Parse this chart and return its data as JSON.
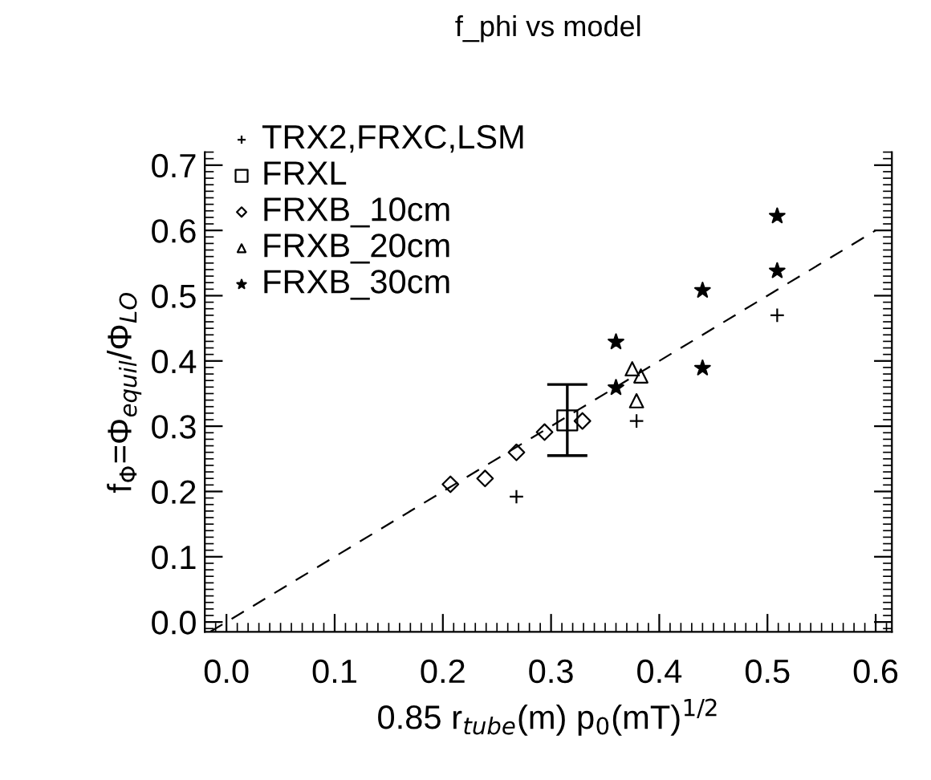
{
  "chart_data": {
    "type": "scatter",
    "title": "f_phi vs model",
    "xlabel": "0.85 r$_{tube}$(m) p$_{0}$(mT)$^{1/2}$",
    "ylabel": "f$_{Φ}$=Φ$_{equil}$/Φ$_{LO}$",
    "xlim": [
      -0.02,
      0.615
    ],
    "ylim": [
      -0.015,
      0.72
    ],
    "xticks": [
      {
        "value": 0,
        "label": "0.0"
      },
      0.1,
      0.2,
      0.3,
      0.4,
      0.5,
      0.6
    ],
    "yticks": [
      {
        "value": 0,
        "label": "0.0"
      },
      0.1,
      0.2,
      0.3,
      0.4,
      0.5,
      0.6,
      0.7
    ],
    "grid": false,
    "legend": "top left",
    "series": [
      {
        "name": "TRX2,FRXC,LSM",
        "color": "#000000",
        "marker": "cross",
        "x": [
          0.268,
          0.379,
          0.509
        ],
        "values": [
          0.192,
          0.308,
          0.47
        ]
      },
      {
        "name": "FRXL",
        "color": "#000000",
        "marker": "square",
        "x": [
          0.315
        ],
        "values": [
          0.309
        ],
        "errors": [
          [
            0.255,
            0.364
          ]
        ]
      },
      {
        "name": "FRXB_10cm",
        "color": "#000000",
        "marker": "diamond",
        "x": [
          0.207,
          0.239,
          0.268,
          0.294,
          0.329
        ],
        "values": [
          0.211,
          0.22,
          0.26,
          0.291,
          0.308
        ]
      },
      {
        "name": "FRXB_20cm",
        "color": "#000000",
        "marker": "triangle",
        "x": [
          0.375,
          0.383,
          0.379
        ],
        "values": [
          0.388,
          0.377,
          0.339
        ]
      },
      {
        "name": "FRXB_30cm",
        "color": "#000000",
        "marker": "star",
        "x": [
          0.509,
          0.509,
          0.44,
          0.44,
          0.36,
          0.36
        ],
        "values": [
          0.622,
          0.538,
          0.508,
          0.389,
          0.429,
          0.359
        ]
      },
      {
        "type": "line",
        "color": "#000000",
        "line_style": "dashed",
        "marker": "none",
        "x": [
          -0.015,
          0.6
        ],
        "values": [
          -0.015,
          0.6
        ]
      }
    ]
  }
}
